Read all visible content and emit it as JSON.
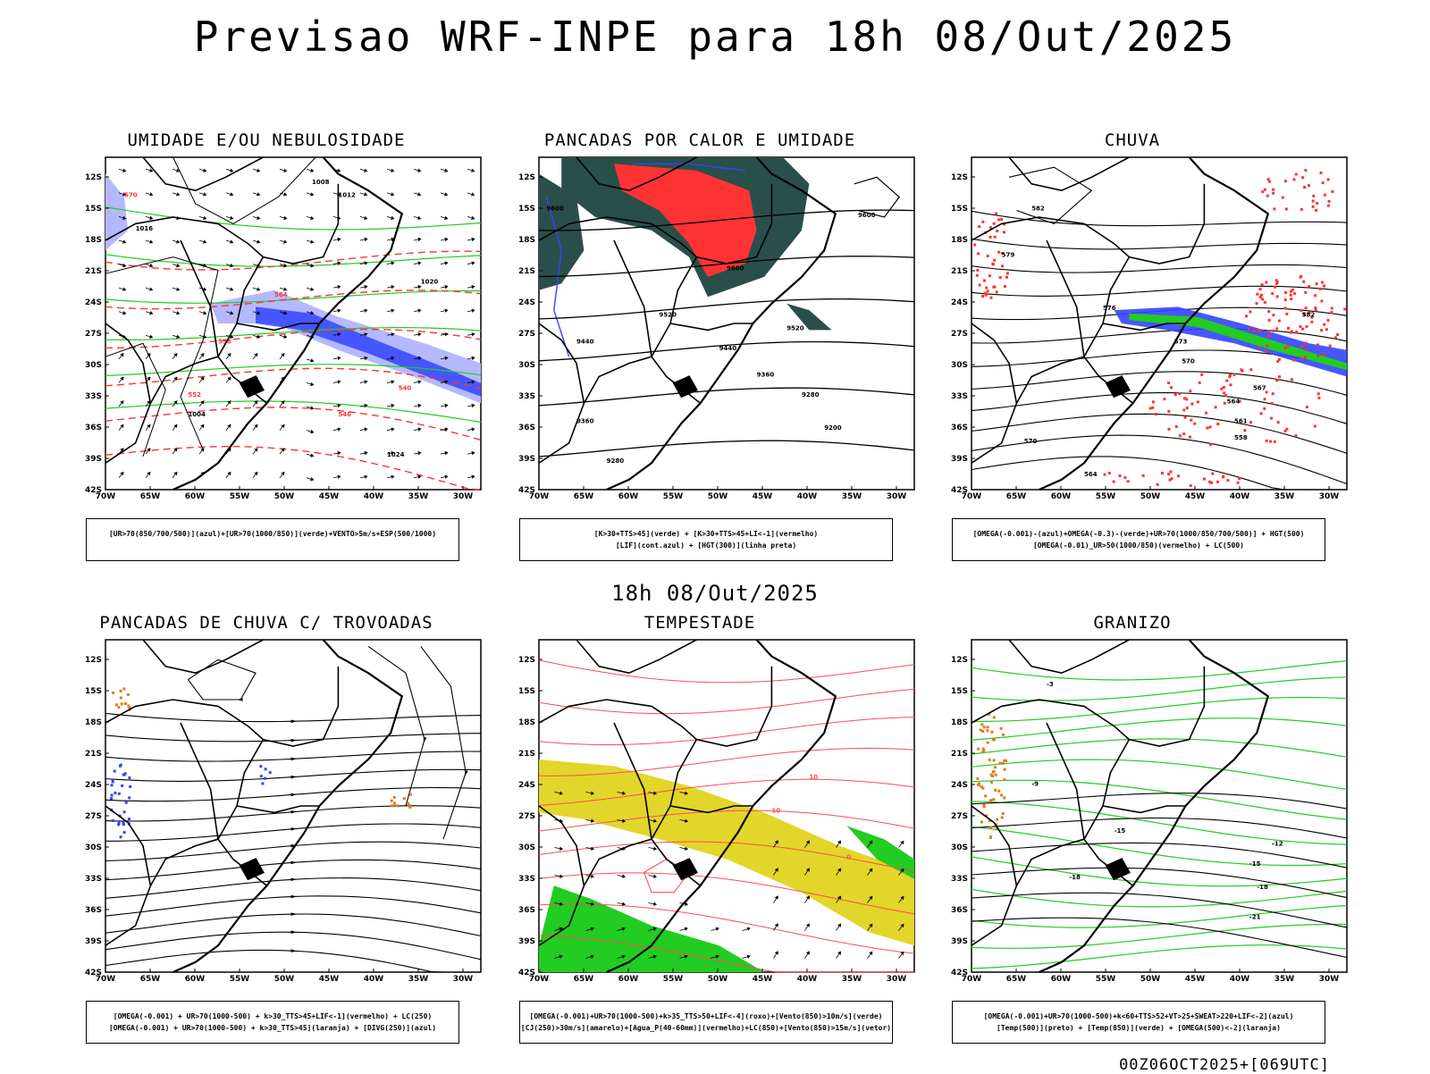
{
  "title": "Previsao WRF-INPE  para 18h 08/Out/2025",
  "center_date": "18h 08/Out/2025",
  "footer": "00Z06OCT2025+[069UTC]",
  "lat_ticks": [
    "12S",
    "15S",
    "18S",
    "21S",
    "24S",
    "27S",
    "30S",
    "33S",
    "36S",
    "39S",
    "42S"
  ],
  "lon_ticks": [
    "70W",
    "65W",
    "60W",
    "55W",
    "50W",
    "45W",
    "40W",
    "35W",
    "30W"
  ],
  "panels": [
    {
      "title": "UMIDADE E/OU NEBULOSIDADE",
      "legend": [
        "[UR>70(850/700/500)](azul)+[UR>70(1000/850)](verde)+VENTO>5m/s+ESP(500/1000)"
      ],
      "labels": [
        "1008",
        "1012",
        "1016",
        "1020",
        "1024",
        "1004",
        "570",
        "564",
        "558",
        "552",
        "546",
        "540"
      ]
    },
    {
      "title": "PANCADAS POR CALOR E UMIDADE",
      "legend": [
        "[K>30+TTS>45](verde) + [K>30+TTS>45+LI<-1](vermelho)",
        "[LIF](cont.azul) + [HGT(300)](linha preta)"
      ],
      "labels": [
        "9600",
        "9520",
        "9440",
        "9360",
        "9280",
        "9200"
      ]
    },
    {
      "title": "CHUVA",
      "legend": [
        "[OMEGA(-0.001)-(azul)+OMEGA(-0.3)-(verde)+UR>70(1000/850/700/500)] + HGT(500)",
        "[OMEGA(-0.01)_UR>50(1000/850)(vermelho) + LC(500)"
      ],
      "labels": [
        "582",
        "579",
        "576",
        "573",
        "570",
        "567",
        "564",
        "561",
        "558"
      ]
    },
    {
      "title": "PANCADAS DE CHUVA C/ TROVOADAS",
      "legend": [
        "[OMEGA(-0.001) + UR>70(1000-500) + k>30_TTS>45+LIF<-1](vermelho) + LC(250)",
        "[OMEGA(-0.001) + UR>70(1000-500) + k>30_TTS>45](laranja) + [DIVG(250)](azul)"
      ],
      "labels": []
    },
    {
      "title": "TEMPESTADE",
      "legend": [
        "[OMEGA(-0.001)+UR>70(1000-500)+k>35_TTS>50+LIF<-4](roxo)+[Vento(850)>10m/s](verde)",
        "[CJ(250)>30m/s](amarelo)+[Agua_P(40-60mm)](vermelho)+LC(850)+[Vento(850)>15m/s](vetor)"
      ],
      "labels": [
        "10",
        "0"
      ]
    },
    {
      "title": "GRANIZO",
      "legend": [
        "[OMEGA(-0.001)+UR>70(1000-500)+k<60+TTS>52+VT>25+SWEAT>220+LIF<-2](azul)",
        "[Temp(500)](preto) + [Temp(850)](verde) + [OMEGA(500)<-2](laranja)"
      ],
      "labels": [
        "-3",
        "-9",
        "-12",
        "-15",
        "-18",
        "-21"
      ]
    }
  ],
  "colors": {
    "red": "#ff3333",
    "green": "#22cc22",
    "blue": "#3344ff",
    "lightblue": "#b4b8ff",
    "yellow": "#e2d62a",
    "darkteal": "#2a4f4a",
    "orange": "#e07a1e",
    "contour_red": "#ff4d4d"
  }
}
